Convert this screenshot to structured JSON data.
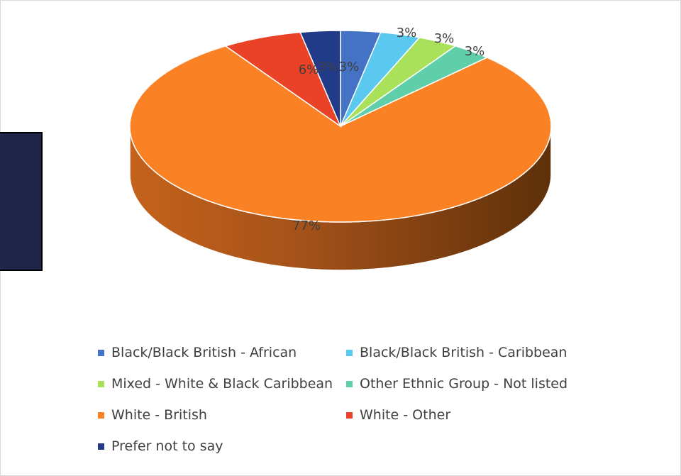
{
  "chart_data": {
    "type": "pie",
    "title": "",
    "categories": [
      "Black/Black British - African",
      "Black/Black British - Caribbean",
      "Mixed - White & Black Caribbean",
      "Other Ethnic Group - Not listed",
      "White - British",
      "White - Other",
      "Prefer not to say"
    ],
    "values": [
      3,
      3,
      3,
      3,
      77,
      6,
      3
    ],
    "labels": [
      "3%",
      "3%",
      "3%",
      "3%",
      "77%",
      "6%",
      "3%"
    ],
    "colors": [
      "#4472c4",
      "#5bc8ef",
      "#a9e25a",
      "#5fcfa9",
      "#fa8224",
      "#ea4226",
      "#223a8a"
    ],
    "style": "3d-pie",
    "legend_position": "bottom"
  }
}
